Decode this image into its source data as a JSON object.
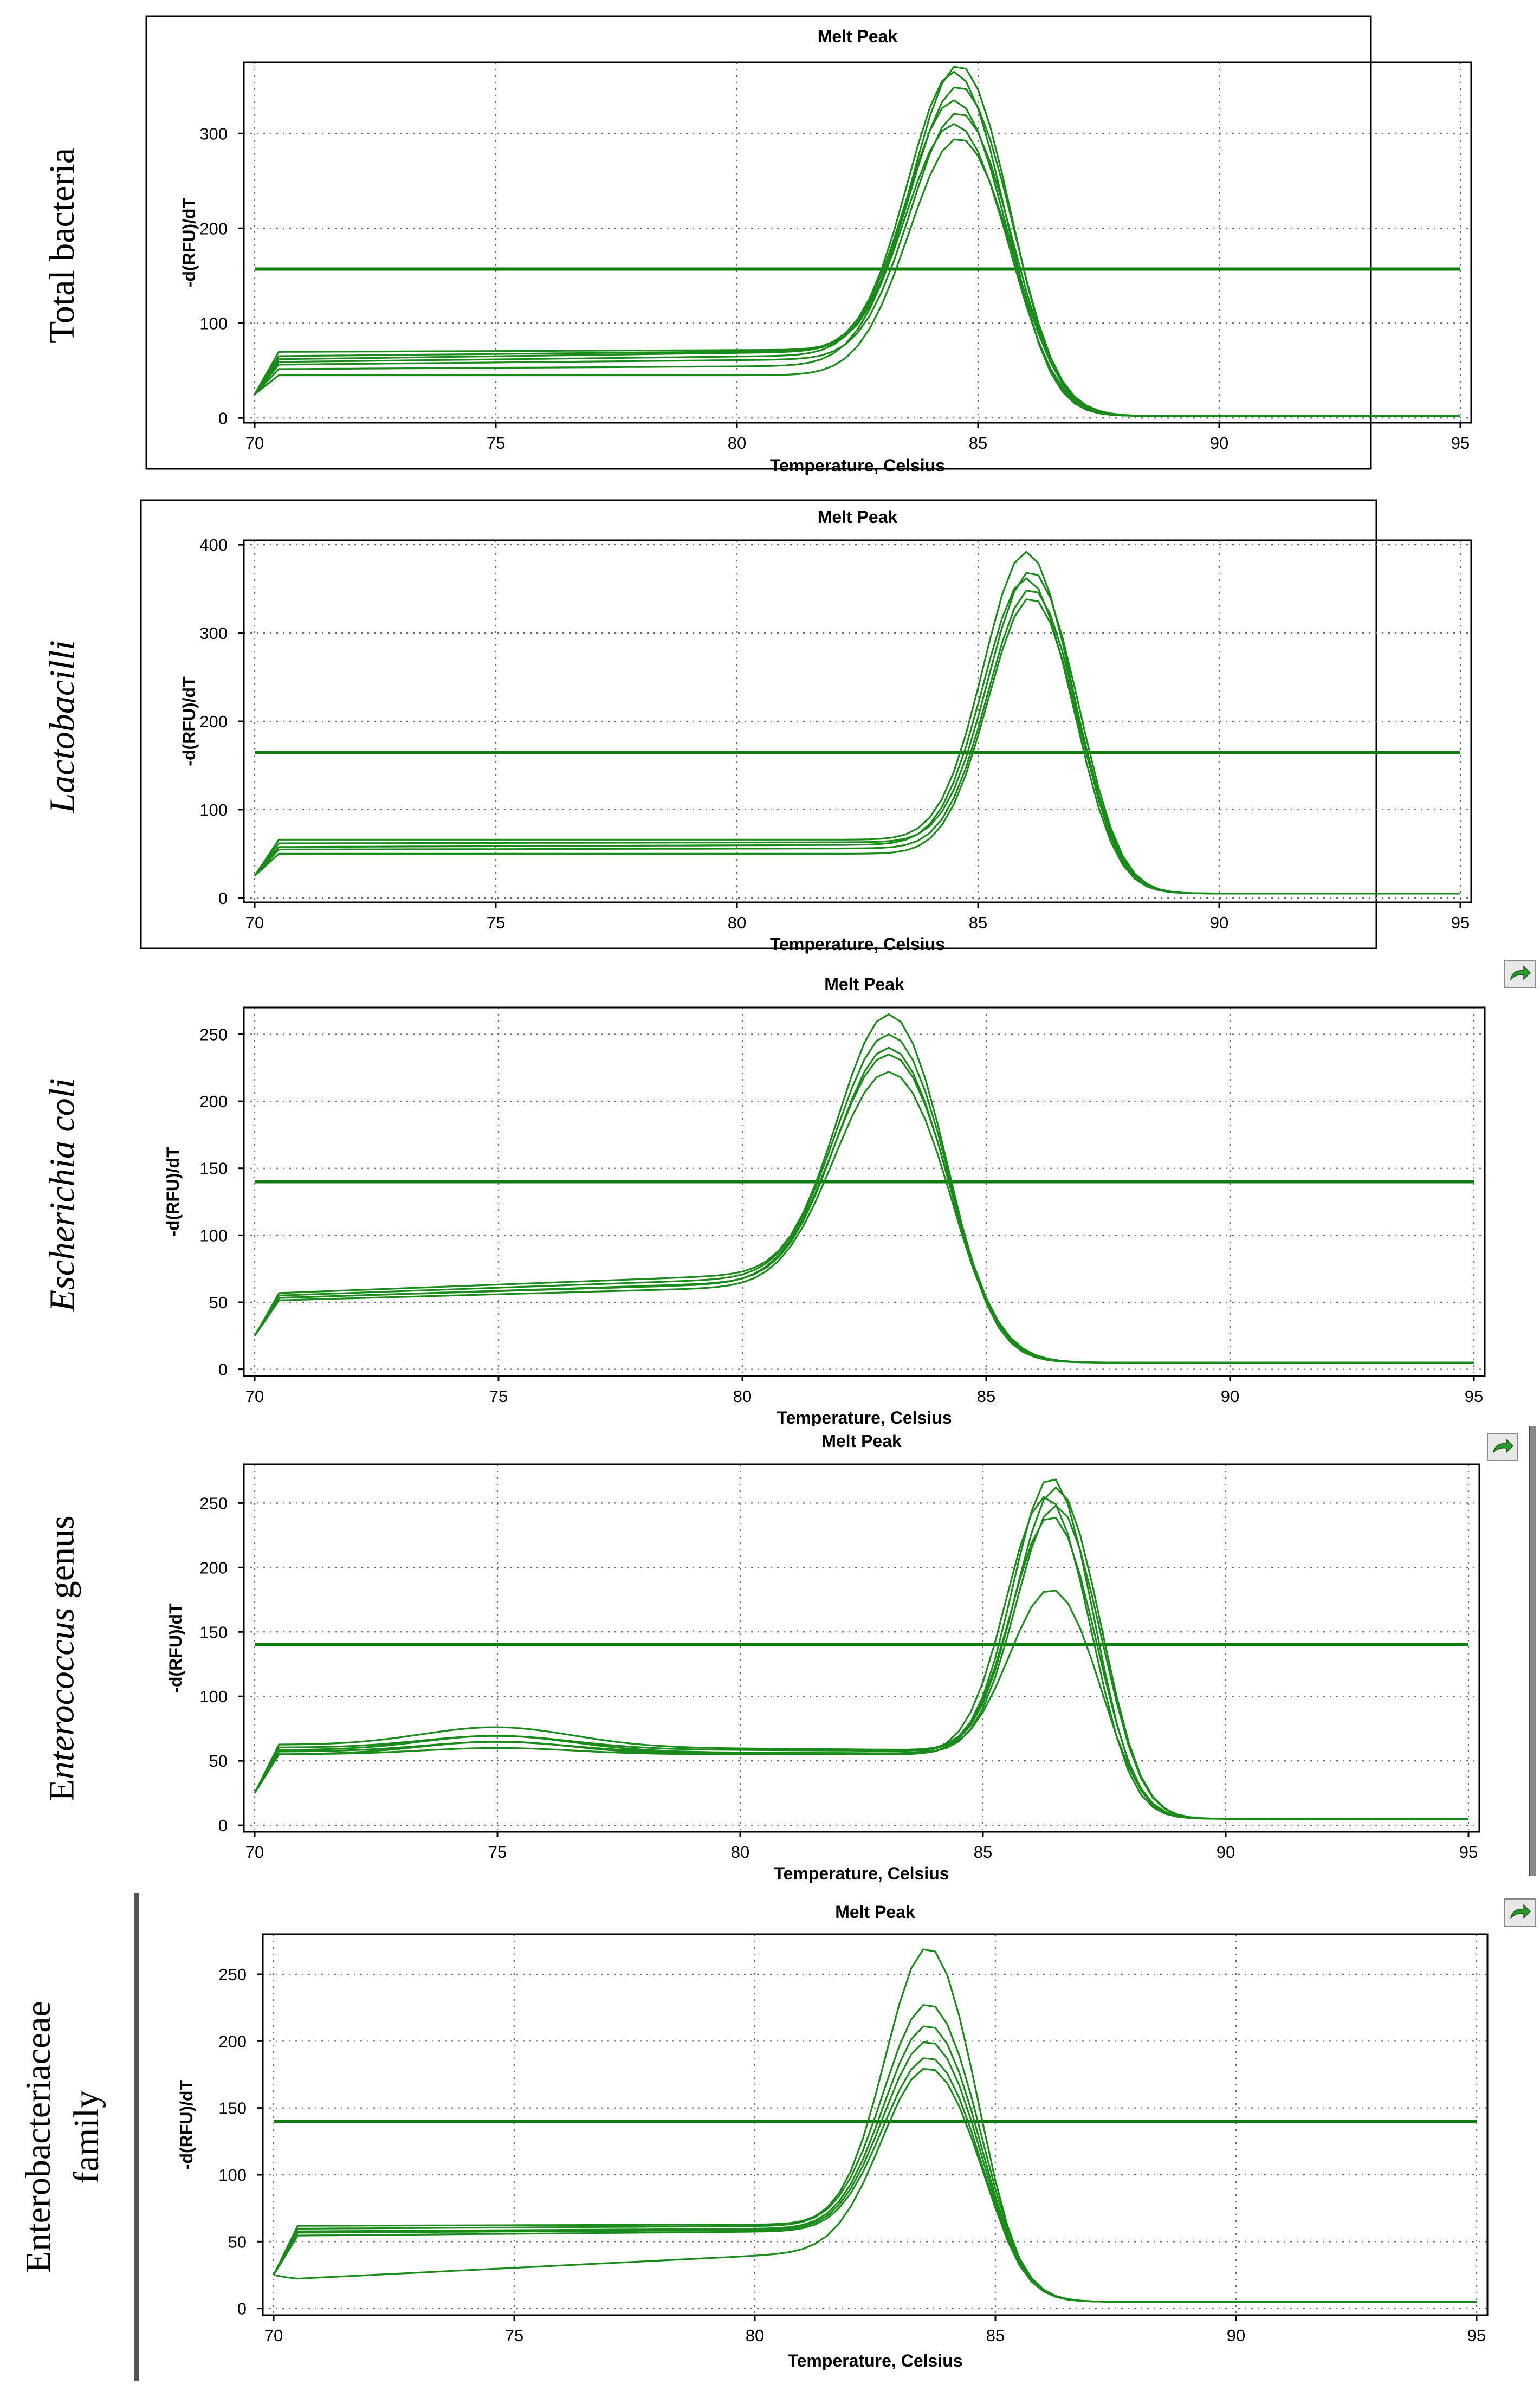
{
  "panels": [
    {
      "label": "Total bacteria",
      "label_italic": false,
      "chart_data": {
        "type": "line",
        "title": "Melt Peak",
        "xlabel": "Temperature, Celsius",
        "ylabel": "-d(RFU)/dT",
        "xlim": [
          70,
          95
        ],
        "ylim": [
          -5,
          375
        ],
        "xticks": [
          70,
          75,
          80,
          85,
          90,
          95
        ],
        "yticks": [
          0,
          100,
          200,
          300
        ],
        "grid": true,
        "threshold": 157,
        "start_offset": 0,
        "tail": 2,
        "series": [
          {
            "base": 45,
            "rise": 0.0,
            "peak": 295,
            "center": 84.6,
            "width": 1.45
          },
          {
            "base": 52,
            "rise": 0.3,
            "peak": 310,
            "center": 84.5,
            "width": 1.45
          },
          {
            "base": 57,
            "rise": 0.5,
            "peak": 322,
            "center": 84.6,
            "width": 1.4
          },
          {
            "base": 60,
            "rise": 0.6,
            "peak": 335,
            "center": 84.5,
            "width": 1.4
          },
          {
            "base": 63,
            "rise": 0.7,
            "peak": 350,
            "center": 84.6,
            "width": 1.4
          },
          {
            "base": 66,
            "rise": 0.5,
            "peak": 365,
            "center": 84.5,
            "width": 1.35
          },
          {
            "base": 70,
            "rise": 0.2,
            "peak": 372,
            "center": 84.6,
            "width": 1.35
          }
        ]
      }
    },
    {
      "label": "Lactobacilli",
      "label_italic": true,
      "chart_data": {
        "type": "line",
        "title": "Melt Peak",
        "xlabel": "Temperature, Celsius",
        "ylabel": "-d(RFU)/dT",
        "xlim": [
          70,
          95
        ],
        "ylim": [
          -5,
          405
        ],
        "xticks": [
          70,
          75,
          80,
          85,
          90,
          95
        ],
        "yticks": [
          0,
          100,
          200,
          300,
          400
        ],
        "grid": true,
        "threshold": 165,
        "start_offset": 0,
        "tail": 5,
        "series": [
          {
            "base": 50,
            "rise": 0.0,
            "peak": 340,
            "center": 86.1,
            "width": 1.25
          },
          {
            "base": 55,
            "rise": 0.1,
            "peak": 350,
            "center": 86.1,
            "width": 1.25
          },
          {
            "base": 58,
            "rise": 0.2,
            "peak": 362,
            "center": 86.0,
            "width": 1.25
          },
          {
            "base": 62,
            "rise": 0.1,
            "peak": 370,
            "center": 86.1,
            "width": 1.25
          },
          {
            "base": 66,
            "rise": 0.0,
            "peak": 392,
            "center": 86.0,
            "width": 1.25
          }
        ]
      }
    },
    {
      "label": "Escherichia coli",
      "label_italic": true,
      "chart_data": {
        "type": "line",
        "title": "Melt Peak",
        "xlabel": "Temperature, Celsius",
        "ylabel": "-d(RFU)/dT",
        "xlim": [
          70,
          95
        ],
        "ylim": [
          -5,
          270
        ],
        "xticks": [
          70,
          75,
          80,
          85,
          90,
          95
        ],
        "yticks": [
          0,
          50,
          100,
          150,
          200,
          250
        ],
        "grid": true,
        "threshold": 140,
        "start_offset": 0,
        "tail": 5,
        "series": [
          {
            "base": 53,
            "rise": 1.0,
            "peak": 222,
            "center": 83.0,
            "width": 1.55
          },
          {
            "base": 55,
            "rise": 1.1,
            "peak": 235,
            "center": 83.0,
            "width": 1.55
          },
          {
            "base": 55,
            "rise": 1.2,
            "peak": 240,
            "center": 83.0,
            "width": 1.5
          },
          {
            "base": 57,
            "rise": 1.3,
            "peak": 250,
            "center": 83.0,
            "width": 1.5
          },
          {
            "base": 59,
            "rise": 1.4,
            "peak": 265,
            "center": 83.0,
            "width": 1.45
          }
        ]
      }
    },
    {
      "label": "Enterococcus genus",
      "label_italic": true,
      "chart_data": {
        "type": "line",
        "title": "Melt Peak",
        "xlabel": "Temperature, Celsius",
        "ylabel": "-d(RFU)/dT",
        "xlim": [
          70,
          95
        ],
        "ylim": [
          -5,
          280
        ],
        "xticks": [
          70,
          75,
          80,
          85,
          90,
          95
        ],
        "yticks": [
          0,
          50,
          100,
          150,
          200,
          250
        ],
        "grid": true,
        "threshold": 140,
        "start_offset": 0,
        "tail": 5,
        "series": [
          {
            "base": 55,
            "rise": 0.0,
            "hump": 10,
            "peak": 183,
            "center": 86.4,
            "width": 1.2
          },
          {
            "base": 55,
            "rise": 0.0,
            "hump": 5,
            "peak": 240,
            "center": 86.4,
            "width": 1.15
          },
          {
            "base": 57,
            "rise": -0.1,
            "hump": 8,
            "peak": 248,
            "center": 86.5,
            "width": 1.15
          },
          {
            "base": 58,
            "rise": -0.2,
            "hump": 12,
            "peak": 255,
            "center": 86.3,
            "width": 1.15
          },
          {
            "base": 60,
            "rise": -0.2,
            "hump": 10,
            "peak": 262,
            "center": 86.5,
            "width": 1.15
          },
          {
            "base": 62,
            "rise": -0.3,
            "hump": 15,
            "peak": 270,
            "center": 86.4,
            "width": 1.1
          }
        ]
      }
    },
    {
      "label": "Enterobacteriaceae family",
      "label_line1": "Enterobacteriaceae",
      "label_line2": "family",
      "label_italic": false,
      "chart_data": {
        "type": "line",
        "title": "Melt Peak",
        "xlabel": "Temperature, Celsius",
        "ylabel": "-d(RFU)/dT",
        "xlim": [
          70,
          95
        ],
        "ylim": [
          -5,
          280
        ],
        "xticks": [
          70,
          75,
          80,
          85,
          90,
          95
        ],
        "yticks": [
          0,
          50,
          100,
          150,
          200,
          250
        ],
        "grid": true,
        "threshold": 140,
        "start_offset": 0,
        "tail": 5,
        "series": [
          {
            "base": 25,
            "rise": 1.8,
            "peak": 180,
            "center": 83.6,
            "width": 1.35
          },
          {
            "base": 55,
            "rise": 0.3,
            "peak": 188,
            "center": 83.6,
            "width": 1.3
          },
          {
            "base": 57,
            "rise": 0.2,
            "peak": 200,
            "center": 83.6,
            "width": 1.3
          },
          {
            "base": 58,
            "rise": 0.2,
            "peak": 212,
            "center": 83.6,
            "width": 1.3
          },
          {
            "base": 60,
            "rise": 0.2,
            "peak": 228,
            "center": 83.6,
            "width": 1.3
          },
          {
            "base": 62,
            "rise": 0.1,
            "peak": 270,
            "center": 83.6,
            "width": 1.25
          }
        ]
      }
    }
  ]
}
